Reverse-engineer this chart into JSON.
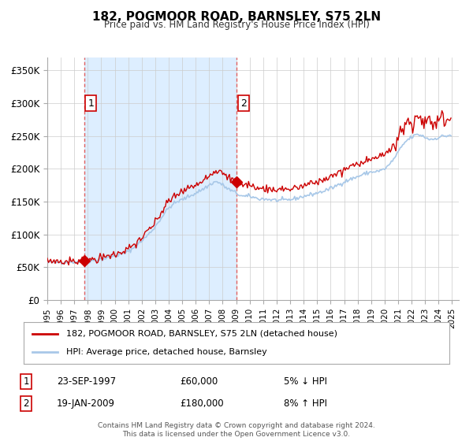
{
  "title": "182, POGMOOR ROAD, BARNSLEY, S75 2LN",
  "subtitle": "Price paid vs. HM Land Registry's House Price Index (HPI)",
  "ylabel_ticks": [
    "£0",
    "£50K",
    "£100K",
    "£150K",
    "£200K",
    "£250K",
    "£300K",
    "£350K"
  ],
  "ytick_values": [
    0,
    50000,
    100000,
    150000,
    200000,
    250000,
    300000,
    350000
  ],
  "ylim": [
    0,
    370000
  ],
  "xlim_start": 1995.0,
  "xlim_end": 2025.5,
  "sale1_date": 1997.75,
  "sale1_price": 60000,
  "sale1_label": "1",
  "sale2_date": 2009.05,
  "sale2_price": 180000,
  "sale2_label": "2",
  "hpi_color": "#a8c8e8",
  "price_color": "#cc0000",
  "dashed_color": "#e06060",
  "shade_color": "#ddeeff",
  "legend_label1": "182, POGMOOR ROAD, BARNSLEY, S75 2LN (detached house)",
  "legend_label2": "HPI: Average price, detached house, Barnsley",
  "table_row1": [
    "1",
    "23-SEP-1997",
    "£60,000",
    "5% ↓ HPI"
  ],
  "table_row2": [
    "2",
    "19-JAN-2009",
    "£180,000",
    "8% ↑ HPI"
  ],
  "footer": "Contains HM Land Registry data © Crown copyright and database right 2024.\nThis data is licensed under the Open Government Licence v3.0.",
  "background_color": "#ffffff",
  "grid_color": "#cccccc"
}
